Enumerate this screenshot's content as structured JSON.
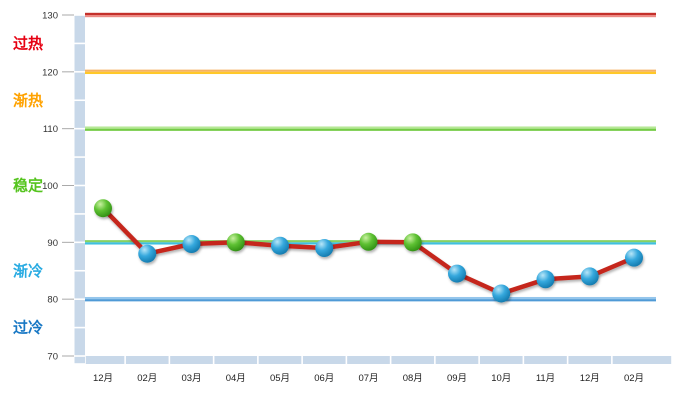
{
  "chart_data": {
    "type": "line",
    "title": "",
    "categories": [
      "12月",
      "02月",
      "03月",
      "04月",
      "05月",
      "06月",
      "07月",
      "08月",
      "09月",
      "10月",
      "11月",
      "12月",
      "02月"
    ],
    "values": [
      96,
      88,
      89.7,
      90,
      89.4,
      89,
      90.1,
      90,
      84.5,
      81,
      83.5,
      84,
      87.3
    ],
    "point_colors": [
      "green",
      "blue",
      "blue",
      "green",
      "blue",
      "blue",
      "green",
      "green",
      "blue",
      "blue",
      "blue",
      "blue",
      "blue"
    ],
    "ylim": [
      70,
      130
    ],
    "yticks": [
      130,
      120,
      110,
      100,
      90,
      80,
      70
    ],
    "grid": "threshold-bands",
    "legend": "none",
    "zones": [
      {
        "key": "overheated",
        "label": "过热",
        "label_color": "#e60012",
        "range": [
          120,
          130
        ]
      },
      {
        "key": "warming",
        "label": "渐热",
        "label_color": "#ffa200",
        "range": [
          110,
          120
        ]
      },
      {
        "key": "stable",
        "label": "稳定",
        "label_color": "#55c41e",
        "range": [
          90,
          110
        ]
      },
      {
        "key": "cooling",
        "label": "渐冷",
        "label_color": "#29abe2",
        "range": [
          80,
          90
        ]
      },
      {
        "key": "overcooled",
        "label": "过冷",
        "label_color": "#1777c4",
        "range": [
          70,
          80
        ]
      }
    ],
    "threshold_lines": [
      {
        "value": 130,
        "top_color": "#c4302b",
        "bottom_color": "#ec8a84"
      },
      {
        "value": 120,
        "top_color": "#f6b261",
        "bottom_color": "#ffc828"
      },
      {
        "value": 110,
        "top_color": "#b6e896",
        "bottom_color": "#74cb45"
      },
      {
        "value": 90,
        "top_color": "#86d163",
        "bottom_color": "#3fc0e0"
      },
      {
        "value": 80,
        "top_color": "#95c6ec",
        "bottom_color": "#4f9ad6"
      }
    ],
    "series_line_color": "#c5271d",
    "marker_styles": {
      "green": {
        "highlight": "#c8f0a0",
        "mid": "#5ec133",
        "edge": "#2b8a10"
      },
      "blue": {
        "highlight": "#b8e6f8",
        "mid": "#35a8dd",
        "edge": "#0f74a8"
      }
    },
    "axis_bar_color": "#c8d8e9",
    "tick_label_color": "#333333",
    "x_label_color": "#222222"
  }
}
